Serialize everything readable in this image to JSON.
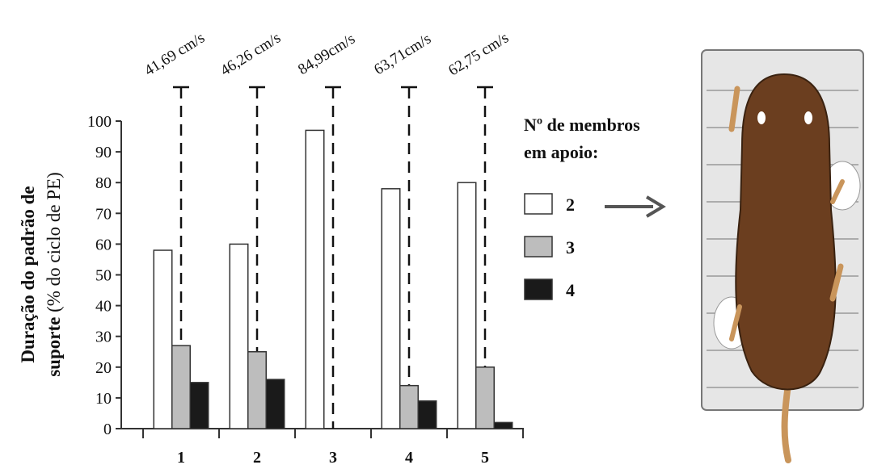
{
  "chart_data": {
    "type": "bar",
    "categories": [
      "1",
      "2",
      "3",
      "4",
      "5"
    ],
    "series": [
      {
        "name": "2",
        "color": "#ffffff",
        "values": [
          58,
          60,
          97,
          78,
          80
        ]
      },
      {
        "name": "3",
        "color": "#bdbdbd",
        "values": [
          27,
          25,
          0,
          14,
          20
        ]
      },
      {
        "name": "4",
        "color": "#1a1a1a",
        "values": [
          15,
          16,
          0,
          9,
          2
        ]
      }
    ],
    "ylim": [
      0,
      100
    ],
    "yticks": [
      0,
      10,
      20,
      30,
      40,
      50,
      60,
      70,
      80,
      90,
      100
    ],
    "y_label_bold": "Duração do padrão de",
    "y_label_bold_2": "suporte",
    "y_label_normal": "(% do ciclo de PE)",
    "legend_title": [
      "Nº de membros",
      "em apoio:"
    ],
    "annotations": [
      "41,69 cm/s",
      "46,26 cm/s",
      "84,99cm/s",
      "63,71cm/s",
      "62,75 cm/s"
    ]
  }
}
